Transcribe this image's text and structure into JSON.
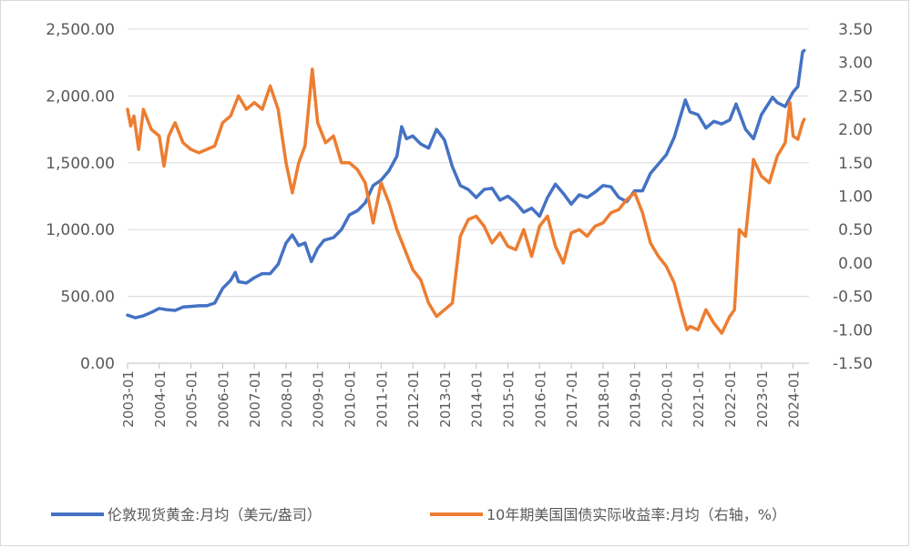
{
  "chart_data": {
    "type": "line",
    "title": "",
    "xlabel": "",
    "ylabel_left": "",
    "ylabel_right": "",
    "grid": "horizontal",
    "legend_position": "bottom",
    "x_ticks": [
      "2003-01",
      "2004-01",
      "2005-01",
      "2006-01",
      "2007-01",
      "2008-01",
      "2009-01",
      "2010-01",
      "2011-01",
      "2012-01",
      "2013-01",
      "2014-01",
      "2015-01",
      "2016-01",
      "2017-01",
      "2018-01",
      "2019-01",
      "2020-01",
      "2021-01",
      "2022-01",
      "2023-01",
      "2024-01"
    ],
    "x_range": [
      2003.0,
      2024.5
    ],
    "y_left": {
      "ticks": [
        "0.00",
        "500.00",
        "1,000.00",
        "1,500.00",
        "2,000.00",
        "2,500.00"
      ],
      "range": [
        0,
        2500
      ]
    },
    "y_right": {
      "ticks": [
        "-1.50",
        "-1.00",
        "-0.50",
        "0.00",
        "0.50",
        "1.00",
        "1.50",
        "2.00",
        "2.50",
        "3.00",
        "3.50"
      ],
      "range": [
        -1.5,
        3.5
      ]
    },
    "series": [
      {
        "name": "伦敦现货黄金:月均（美元/盎司）",
        "axis": "left",
        "color": "#4472C4",
        "points": [
          [
            2003.0,
            360
          ],
          [
            2003.25,
            340
          ],
          [
            2003.5,
            355
          ],
          [
            2003.75,
            380
          ],
          [
            2004.0,
            410
          ],
          [
            2004.25,
            400
          ],
          [
            2004.5,
            395
          ],
          [
            2004.75,
            420
          ],
          [
            2005.0,
            425
          ],
          [
            2005.25,
            430
          ],
          [
            2005.5,
            430
          ],
          [
            2005.75,
            450
          ],
          [
            2006.0,
            560
          ],
          [
            2006.25,
            620
          ],
          [
            2006.4,
            680
          ],
          [
            2006.5,
            610
          ],
          [
            2006.75,
            600
          ],
          [
            2007.0,
            640
          ],
          [
            2007.25,
            670
          ],
          [
            2007.5,
            670
          ],
          [
            2007.75,
            740
          ],
          [
            2008.0,
            900
          ],
          [
            2008.2,
            960
          ],
          [
            2008.4,
            880
          ],
          [
            2008.6,
            900
          ],
          [
            2008.8,
            760
          ],
          [
            2009.0,
            860
          ],
          [
            2009.2,
            920
          ],
          [
            2009.5,
            940
          ],
          [
            2009.75,
            1000
          ],
          [
            2010.0,
            1110
          ],
          [
            2010.25,
            1140
          ],
          [
            2010.5,
            1200
          ],
          [
            2010.75,
            1330
          ],
          [
            2011.0,
            1370
          ],
          [
            2011.25,
            1440
          ],
          [
            2011.5,
            1550
          ],
          [
            2011.65,
            1770
          ],
          [
            2011.8,
            1680
          ],
          [
            2012.0,
            1700
          ],
          [
            2012.25,
            1640
          ],
          [
            2012.5,
            1610
          ],
          [
            2012.75,
            1750
          ],
          [
            2013.0,
            1670
          ],
          [
            2013.25,
            1470
          ],
          [
            2013.5,
            1330
          ],
          [
            2013.75,
            1300
          ],
          [
            2014.0,
            1240
          ],
          [
            2014.25,
            1300
          ],
          [
            2014.5,
            1310
          ],
          [
            2014.75,
            1220
          ],
          [
            2015.0,
            1250
          ],
          [
            2015.25,
            1200
          ],
          [
            2015.5,
            1130
          ],
          [
            2015.75,
            1160
          ],
          [
            2016.0,
            1100
          ],
          [
            2016.25,
            1240
          ],
          [
            2016.5,
            1340
          ],
          [
            2016.75,
            1270
          ],
          [
            2017.0,
            1190
          ],
          [
            2017.25,
            1260
          ],
          [
            2017.5,
            1240
          ],
          [
            2017.75,
            1280
          ],
          [
            2018.0,
            1330
          ],
          [
            2018.25,
            1320
          ],
          [
            2018.5,
            1240
          ],
          [
            2018.75,
            1210
          ],
          [
            2019.0,
            1290
          ],
          [
            2019.25,
            1290
          ],
          [
            2019.5,
            1420
          ],
          [
            2019.75,
            1490
          ],
          [
            2020.0,
            1560
          ],
          [
            2020.25,
            1690
          ],
          [
            2020.6,
            1970
          ],
          [
            2020.75,
            1880
          ],
          [
            2021.0,
            1860
          ],
          [
            2021.25,
            1760
          ],
          [
            2021.5,
            1810
          ],
          [
            2021.75,
            1790
          ],
          [
            2022.0,
            1820
          ],
          [
            2022.2,
            1940
          ],
          [
            2022.5,
            1750
          ],
          [
            2022.75,
            1680
          ],
          [
            2023.0,
            1860
          ],
          [
            2023.35,
            1990
          ],
          [
            2023.5,
            1950
          ],
          [
            2023.75,
            1920
          ],
          [
            2024.0,
            2030
          ],
          [
            2024.15,
            2070
          ],
          [
            2024.3,
            2330
          ],
          [
            2024.35,
            2340
          ]
        ]
      },
      {
        "name": "10年期美国国债实际收益率:月均（右轴，%）",
        "axis": "right",
        "color": "#ED7D31",
        "points": [
          [
            2003.0,
            2.3
          ],
          [
            2003.1,
            2.05
          ],
          [
            2003.2,
            2.2
          ],
          [
            2003.35,
            1.7
          ],
          [
            2003.5,
            2.3
          ],
          [
            2003.75,
            2.0
          ],
          [
            2004.0,
            1.9
          ],
          [
            2004.15,
            1.45
          ],
          [
            2004.3,
            1.9
          ],
          [
            2004.5,
            2.1
          ],
          [
            2004.75,
            1.8
          ],
          [
            2005.0,
            1.7
          ],
          [
            2005.25,
            1.65
          ],
          [
            2005.5,
            1.7
          ],
          [
            2005.75,
            1.75
          ],
          [
            2006.0,
            2.1
          ],
          [
            2006.25,
            2.2
          ],
          [
            2006.5,
            2.5
          ],
          [
            2006.75,
            2.3
          ],
          [
            2007.0,
            2.4
          ],
          [
            2007.25,
            2.3
          ],
          [
            2007.5,
            2.65
          ],
          [
            2007.75,
            2.3
          ],
          [
            2008.0,
            1.5
          ],
          [
            2008.2,
            1.05
          ],
          [
            2008.4,
            1.5
          ],
          [
            2008.6,
            1.75
          ],
          [
            2008.83,
            2.9
          ],
          [
            2009.0,
            2.1
          ],
          [
            2009.25,
            1.8
          ],
          [
            2009.5,
            1.9
          ],
          [
            2009.75,
            1.5
          ],
          [
            2010.0,
            1.5
          ],
          [
            2010.25,
            1.4
          ],
          [
            2010.5,
            1.2
          ],
          [
            2010.75,
            0.6
          ],
          [
            2011.0,
            1.2
          ],
          [
            2011.25,
            0.9
          ],
          [
            2011.5,
            0.5
          ],
          [
            2011.75,
            0.2
          ],
          [
            2012.0,
            -0.1
          ],
          [
            2012.25,
            -0.25
          ],
          [
            2012.5,
            -0.6
          ],
          [
            2012.75,
            -0.8
          ],
          [
            2013.0,
            -0.7
          ],
          [
            2013.25,
            -0.6
          ],
          [
            2013.5,
            0.4
          ],
          [
            2013.75,
            0.65
          ],
          [
            2014.0,
            0.7
          ],
          [
            2014.25,
            0.55
          ],
          [
            2014.5,
            0.3
          ],
          [
            2014.75,
            0.45
          ],
          [
            2015.0,
            0.25
          ],
          [
            2015.25,
            0.2
          ],
          [
            2015.5,
            0.5
          ],
          [
            2015.75,
            0.1
          ],
          [
            2016.0,
            0.55
          ],
          [
            2016.25,
            0.7
          ],
          [
            2016.5,
            0.25
          ],
          [
            2016.75,
            0.0
          ],
          [
            2017.0,
            0.45
          ],
          [
            2017.25,
            0.5
          ],
          [
            2017.5,
            0.4
          ],
          [
            2017.75,
            0.55
          ],
          [
            2018.0,
            0.6
          ],
          [
            2018.25,
            0.75
          ],
          [
            2018.5,
            0.8
          ],
          [
            2018.75,
            0.95
          ],
          [
            2019.0,
            1.05
          ],
          [
            2019.25,
            0.75
          ],
          [
            2019.5,
            0.3
          ],
          [
            2019.75,
            0.1
          ],
          [
            2020.0,
            -0.05
          ],
          [
            2020.25,
            -0.3
          ],
          [
            2020.5,
            -0.75
          ],
          [
            2020.65,
            -1.0
          ],
          [
            2020.75,
            -0.95
          ],
          [
            2021.0,
            -1.0
          ],
          [
            2021.25,
            -0.7
          ],
          [
            2021.5,
            -0.9
          ],
          [
            2021.75,
            -1.05
          ],
          [
            2022.0,
            -0.8
          ],
          [
            2022.15,
            -0.7
          ],
          [
            2022.3,
            0.5
          ],
          [
            2022.5,
            0.4
          ],
          [
            2022.75,
            1.55
          ],
          [
            2023.0,
            1.3
          ],
          [
            2023.25,
            1.2
          ],
          [
            2023.5,
            1.6
          ],
          [
            2023.75,
            1.8
          ],
          [
            2023.9,
            2.4
          ],
          [
            2024.0,
            1.9
          ],
          [
            2024.15,
            1.85
          ],
          [
            2024.3,
            2.1
          ],
          [
            2024.35,
            2.15
          ]
        ]
      }
    ]
  }
}
